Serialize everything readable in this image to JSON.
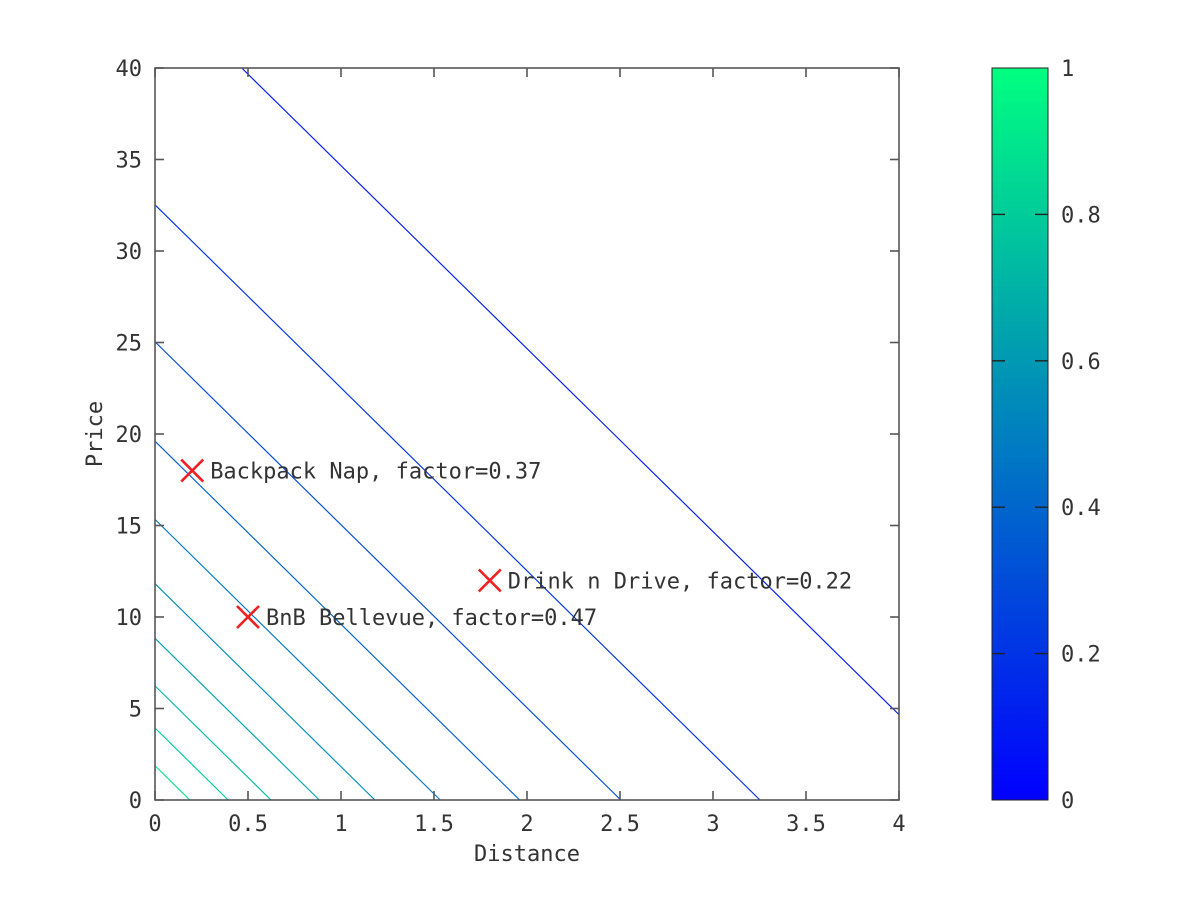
{
  "chart_data": {
    "type": "contour",
    "title": "",
    "xlabel": "Distance",
    "ylabel": "Price",
    "xlim": [
      0,
      4
    ],
    "ylim": [
      0,
      40
    ],
    "grid": false,
    "xticks": [
      0,
      0.5,
      1,
      1.5,
      2,
      2.5,
      3,
      3.5,
      4
    ],
    "xtick_labels": [
      "0",
      "0.5",
      "1",
      "1.5",
      "2",
      "2.5",
      "3",
      "3.5",
      "4"
    ],
    "yticks": [
      0,
      5,
      10,
      15,
      20,
      25,
      30,
      35,
      40
    ],
    "ytick_labels": [
      "0",
      "5",
      "10",
      "15",
      "20",
      "25",
      "30",
      "35",
      "40"
    ],
    "model": "factor = exp(-(Distance/2 + Price/20)); straight contour lines Price = -20*ln(level) - 10*Distance",
    "contour_levels": [
      0.1074,
      0.1967,
      0.2859,
      0.3752,
      0.4645,
      0.5537,
      0.643,
      0.7322,
      0.8215,
      0.9107
    ],
    "contour_segments": [
      {
        "level": 0.1074,
        "x1": 0.4665,
        "y1": 40,
        "x2": 4,
        "y2": 4.665,
        "color": "#001BF1"
      },
      {
        "level": 0.1967,
        "x1": 0,
        "y1": 32.524,
        "x2": 3.2524,
        "y2": 0,
        "color": "#0032E6"
      },
      {
        "level": 0.2859,
        "x1": 0,
        "y1": 25.041,
        "x2": 2.5041,
        "y2": 0,
        "color": "#0049DB"
      },
      {
        "level": 0.3752,
        "x1": 0,
        "y1": 19.606,
        "x2": 1.9606,
        "y2": 0,
        "color": "#0060CF"
      },
      {
        "level": 0.4645,
        "x1": 0,
        "y1": 15.335,
        "x2": 1.5335,
        "y2": 0,
        "color": "#0076C4"
      },
      {
        "level": 0.5537,
        "x1": 0,
        "y1": 11.821,
        "x2": 1.1821,
        "y2": 0,
        "color": "#008DB8"
      },
      {
        "level": 0.643,
        "x1": 0,
        "y1": 8.834,
        "x2": 0.8834,
        "y2": 0,
        "color": "#00A4AD"
      },
      {
        "level": 0.7322,
        "x1": 0,
        "y1": 6.235,
        "x2": 0.6235,
        "y2": 0,
        "color": "#00BBA2"
      },
      {
        "level": 0.8215,
        "x1": 0,
        "y1": 3.933,
        "x2": 0.3933,
        "y2": 0,
        "color": "#00D196"
      },
      {
        "level": 0.9107,
        "x1": 0,
        "y1": 1.871,
        "x2": 0.1871,
        "y2": 0,
        "color": "#00E88B"
      }
    ],
    "markers": [
      {
        "x": 0.2,
        "y": 18,
        "factor": 0.37,
        "label": "Backpack Nap, factor=0.37"
      },
      {
        "x": 0.5,
        "y": 10,
        "factor": 0.47,
        "label": "BnB Bellevue, factor=0.47"
      },
      {
        "x": 1.8,
        "y": 12,
        "factor": 0.22,
        "label": "Drink n Drive, factor=0.22"
      }
    ],
    "marker_style": {
      "symbol": "x",
      "color": "#EE2222",
      "size": 22,
      "stroke_width": 2.6
    },
    "colorbar": {
      "colormap": "winter",
      "range": [
        0,
        1
      ],
      "tick_values": [
        1,
        0.8,
        0.6,
        0.4,
        0.2,
        0
      ],
      "tick_labels": [
        "1",
        "0.8",
        "0.6",
        "0.4",
        "0.2",
        "0"
      ],
      "top_color": "#00FF80",
      "bottom_color": "#0000FF"
    },
    "colors": {
      "background": "#FFFFFF",
      "axis": "#565656",
      "text": "#333333"
    }
  }
}
